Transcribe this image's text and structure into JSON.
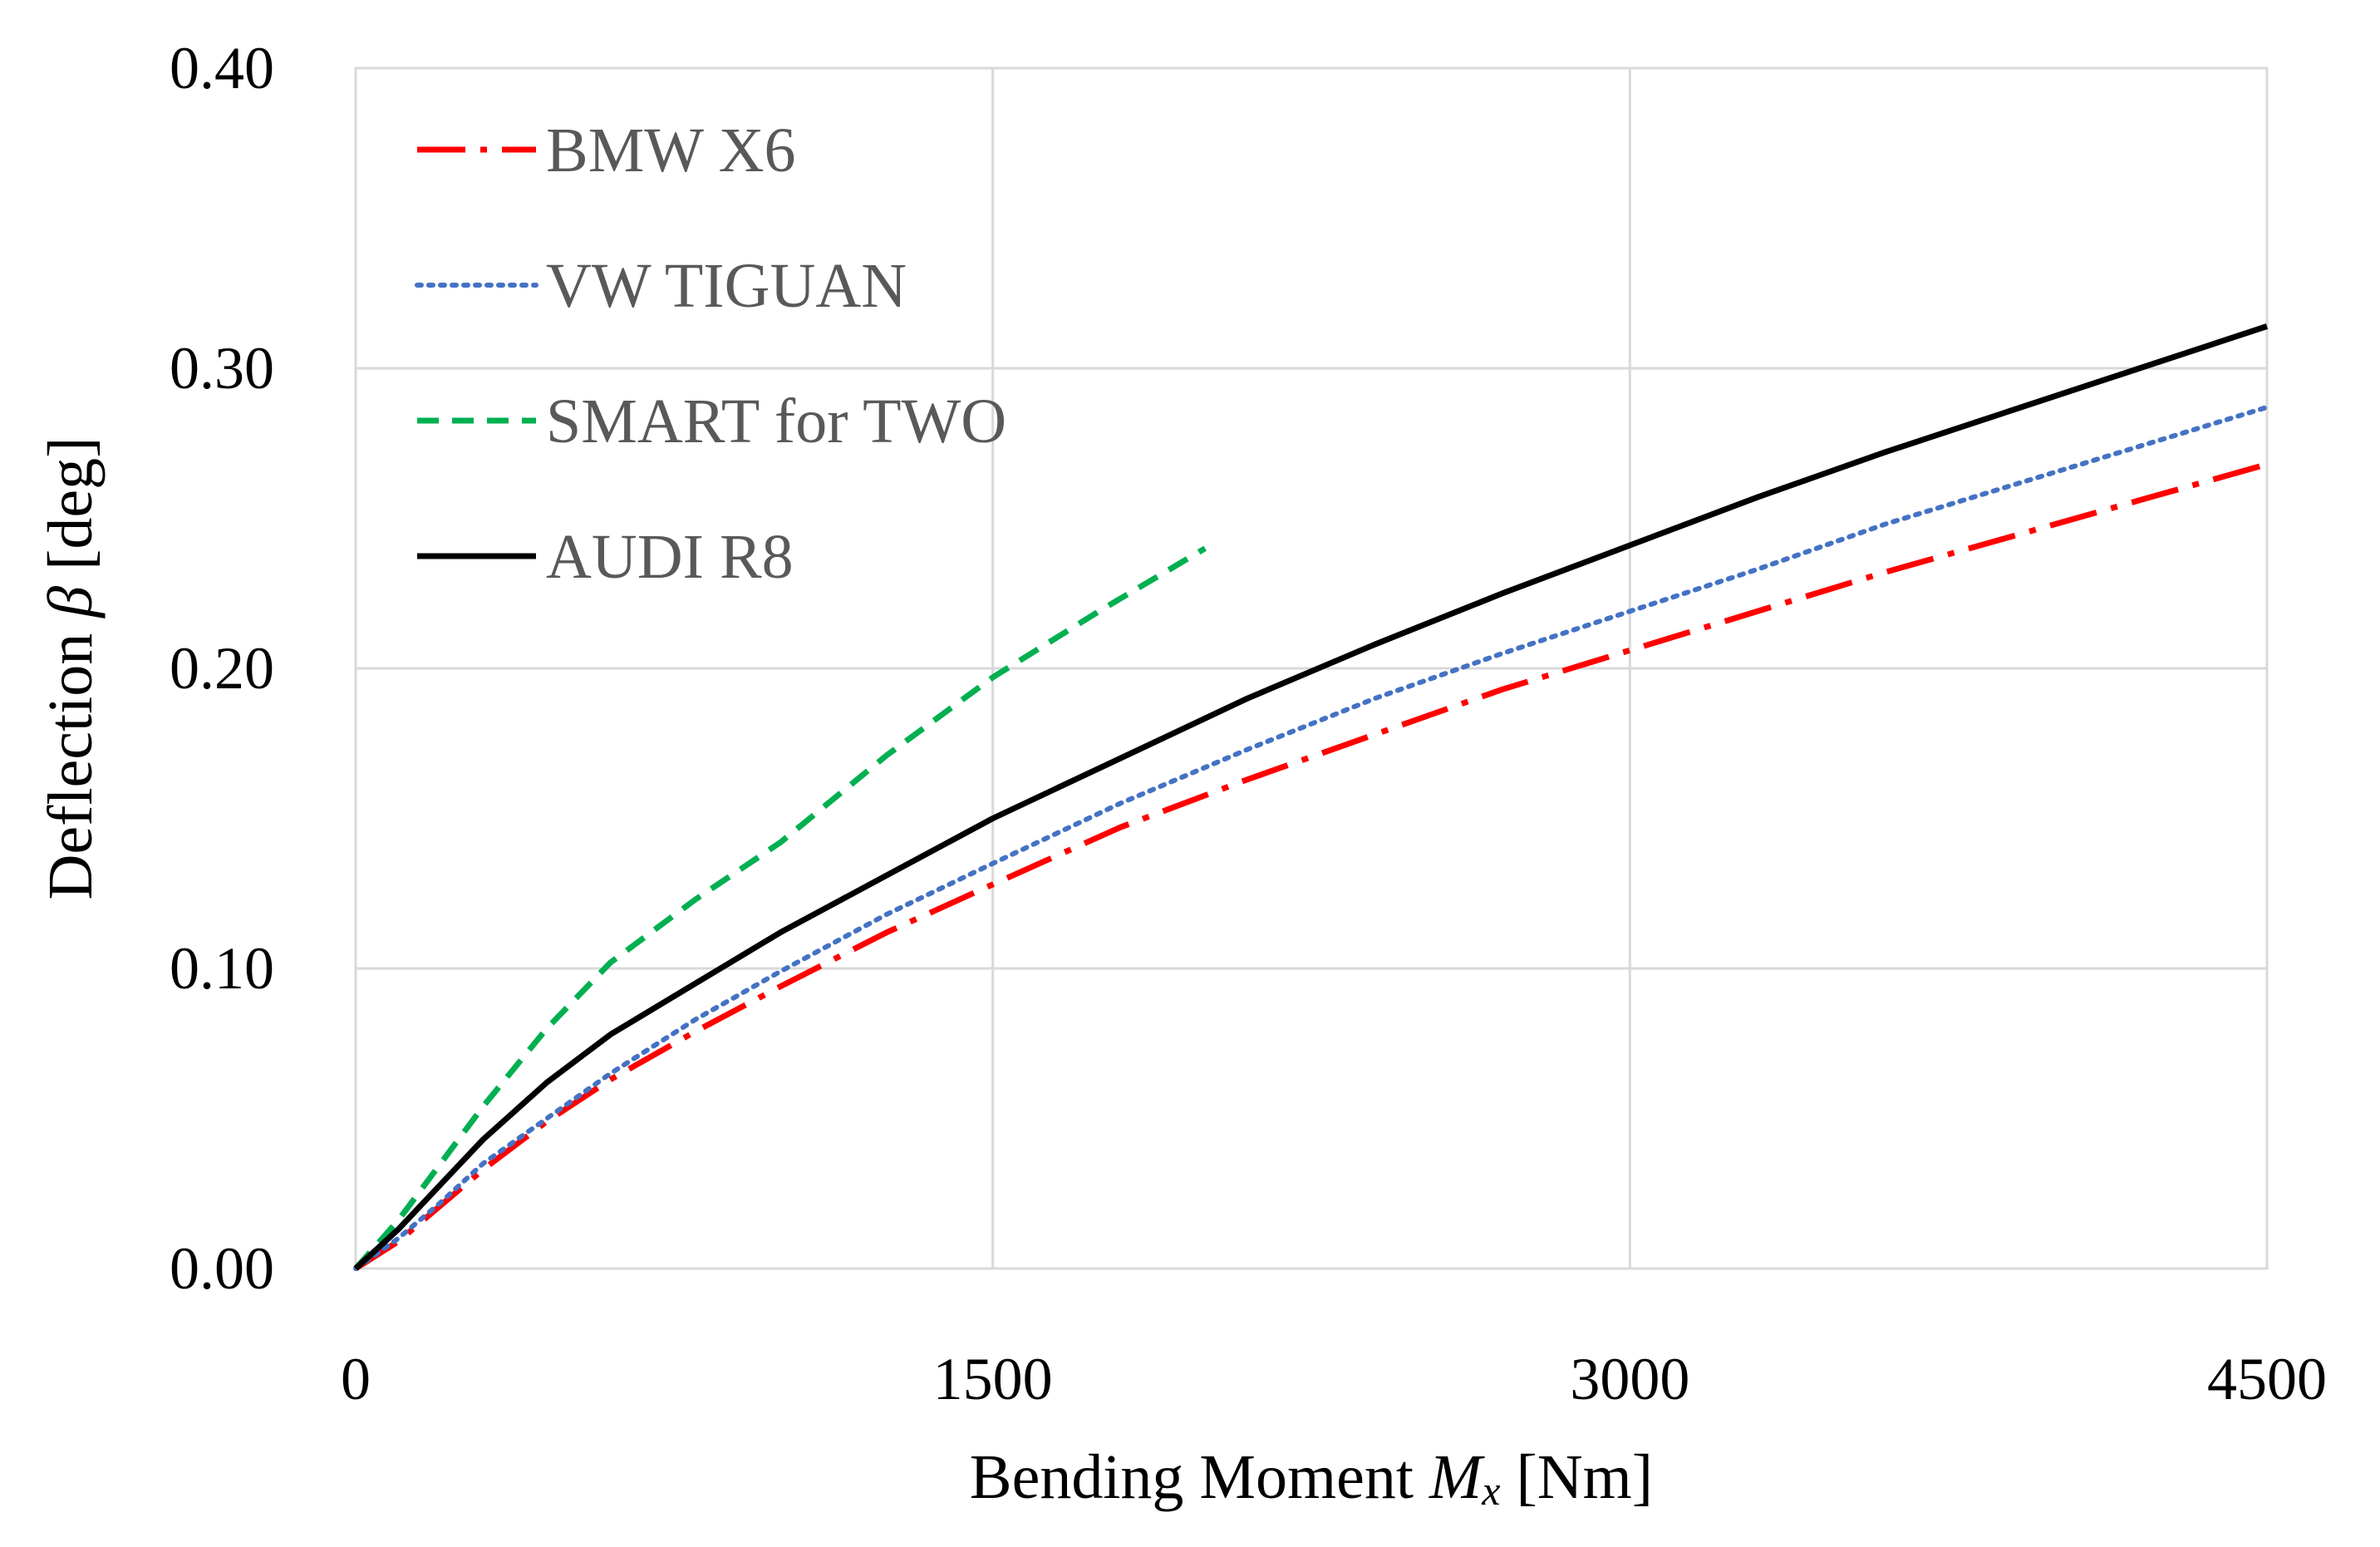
{
  "chart_data": {
    "type": "line",
    "xlabel": {
      "prefix": "Bending Moment ",
      "symbol": "M",
      "subscript": "x",
      "suffix": " [Nm]"
    },
    "ylabel": {
      "prefix": "Deflection ",
      "symbol": "β",
      "suffix": " [deg]"
    },
    "xlim": [
      0,
      4500
    ],
    "ylim": [
      0,
      0.4
    ],
    "xticks": [
      {
        "value": 0,
        "label": "0"
      },
      {
        "value": 1500,
        "label": "1500"
      },
      {
        "value": 3000,
        "label": "3000"
      },
      {
        "value": 4500,
        "label": "4500"
      }
    ],
    "yticks": [
      {
        "value": 0,
        "label": "0.00"
      },
      {
        "value": 0.1,
        "label": "0.10"
      },
      {
        "value": 0.2,
        "label": "0.20"
      },
      {
        "value": 0.3,
        "label": "0.30"
      },
      {
        "value": 0.4,
        "label": "0.40"
      }
    ],
    "grid": true,
    "legend_position": "top-left",
    "series": [
      {
        "name": "BMW X6",
        "color": "#ff0000",
        "dash": "dash-dot",
        "x": [
          0,
          100,
          200,
          300,
          450,
          600,
          800,
          1000,
          1250,
          1500,
          1800,
          2100,
          2400,
          2700,
          3000,
          3300,
          3600,
          3900,
          4200,
          4500
        ],
        "y": [
          0,
          0.009,
          0.021,
          0.033,
          0.049,
          0.063,
          0.079,
          0.094,
          0.112,
          0.128,
          0.147,
          0.163,
          0.178,
          0.193,
          0.206,
          0.219,
          0.232,
          0.244,
          0.256,
          0.268
        ]
      },
      {
        "name": "VW TIGUAN",
        "color": "#4472c4",
        "dash": "dotted",
        "x": [
          0,
          100,
          200,
          300,
          450,
          600,
          800,
          1000,
          1250,
          1500,
          1800,
          2100,
          2400,
          2700,
          3000,
          3300,
          3600,
          3900,
          4200,
          4500
        ],
        "y": [
          0,
          0.01,
          0.022,
          0.035,
          0.05,
          0.065,
          0.083,
          0.099,
          0.118,
          0.135,
          0.155,
          0.173,
          0.19,
          0.205,
          0.219,
          0.233,
          0.248,
          0.261,
          0.274,
          0.287
        ]
      },
      {
        "name": "SMART for TWO",
        "color": "#00b050",
        "dash": "dashed",
        "x": [
          0,
          100,
          200,
          300,
          450,
          600,
          800,
          1000,
          1250,
          1500,
          1750,
          2000
        ],
        "y": [
          0,
          0.016,
          0.035,
          0.054,
          0.08,
          0.102,
          0.123,
          0.142,
          0.171,
          0.197,
          0.219,
          0.24
        ]
      },
      {
        "name": "AUDI R8",
        "color": "#000000",
        "dash": "solid",
        "x": [
          0,
          100,
          200,
          300,
          450,
          600,
          800,
          1000,
          1250,
          1500,
          1800,
          2100,
          2400,
          2700,
          3000,
          3300,
          3600,
          3900,
          4200,
          4500
        ],
        "y": [
          0,
          0.013,
          0.028,
          0.043,
          0.062,
          0.078,
          0.095,
          0.112,
          0.131,
          0.15,
          0.17,
          0.19,
          0.208,
          0.225,
          0.241,
          0.257,
          0.272,
          0.286,
          0.3,
          0.314
        ]
      }
    ]
  }
}
